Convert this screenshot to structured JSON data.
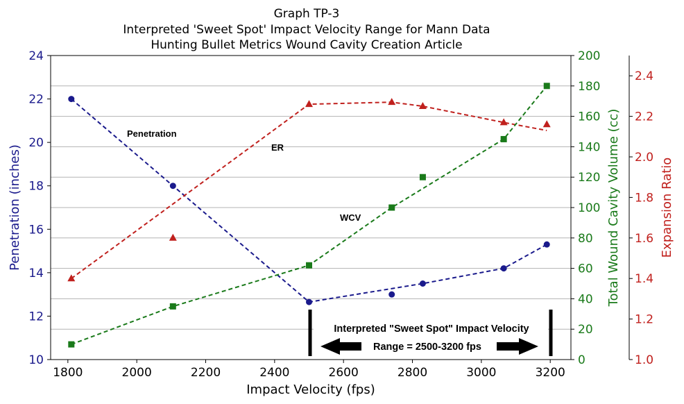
{
  "chart_data": {
    "type": "line",
    "title_lines": [
      "Graph TP-3",
      "Interpreted 'Sweet Spot' Impact Velocity Range for Mann Data",
      "Hunting Bullet Metrics Wound Cavity Creation Article"
    ],
    "xlabel": "Impact Velocity (fps)",
    "xlim": [
      1750,
      3260
    ],
    "xticks": [
      "1800",
      "2000",
      "2200",
      "2400",
      "2600",
      "2800",
      "3000",
      "3200"
    ],
    "axes": {
      "left": {
        "label": "Penetration (inches)",
        "ylim": [
          10,
          24
        ],
        "ticks": [
          "10",
          "12",
          "14",
          "16",
          "18",
          "20",
          "22",
          "24"
        ],
        "color": "#1a1a8c"
      },
      "right1": {
        "label": "Total Wound Cavity Volume (cc)",
        "ylim": [
          0,
          200
        ],
        "ticks": [
          "0",
          "20",
          "40",
          "60",
          "80",
          "100",
          "120",
          "140",
          "160",
          "180",
          "200"
        ],
        "color": "#1a7a1a"
      },
      "right2": {
        "label": "Expansion Ratio",
        "ylim": [
          1.0,
          2.5
        ],
        "ticks": [
          "1.0",
          "1.2",
          "1.4",
          "1.6",
          "1.8",
          "2.0",
          "2.2",
          "2.4"
        ],
        "color": "#c0201d"
      }
    },
    "series": [
      {
        "name": "Penetration",
        "axis": "left",
        "color": "#1a1a8c",
        "marker": "circle",
        "points": [
          [
            1810,
            22.0
          ],
          [
            2105,
            18.0
          ],
          [
            2500,
            12.65
          ],
          [
            2740,
            13.0
          ],
          [
            2830,
            13.5
          ],
          [
            3065,
            14.2
          ],
          [
            3190,
            15.3
          ]
        ],
        "fit": [
          [
            1810,
            22.0
          ],
          [
            2500,
            12.65
          ],
          [
            2830,
            13.5
          ],
          [
            3065,
            14.2
          ],
          [
            3190,
            15.3
          ]
        ]
      },
      {
        "name": "ER",
        "axis": "right2",
        "color": "#c0201d",
        "marker": "triangle",
        "points": [
          [
            1810,
            1.4
          ],
          [
            2105,
            1.6
          ],
          [
            2500,
            2.26
          ],
          [
            2740,
            2.27
          ],
          [
            2830,
            2.25
          ],
          [
            3065,
            2.17
          ],
          [
            3190,
            2.16
          ]
        ],
        "fit": [
          [
            1810,
            1.4
          ],
          [
            2500,
            2.26
          ],
          [
            2740,
            2.27
          ],
          [
            2830,
            2.25
          ],
          [
            3065,
            2.17
          ],
          [
            3190,
            2.13
          ]
        ]
      },
      {
        "name": "WCV",
        "axis": "right1",
        "color": "#1a7a1a",
        "marker": "square",
        "points": [
          [
            1810,
            10
          ],
          [
            2105,
            35
          ],
          [
            2500,
            62
          ],
          [
            2740,
            100
          ],
          [
            2830,
            120
          ],
          [
            3065,
            145
          ],
          [
            3190,
            180
          ]
        ],
        "fit": [
          [
            1810,
            10
          ],
          [
            2105,
            35
          ],
          [
            2500,
            62
          ],
          [
            2740,
            100
          ],
          [
            3065,
            145
          ],
          [
            3190,
            180
          ]
        ]
      }
    ],
    "annotations": [
      {
        "text": "Penetration"
      },
      {
        "text": "ER"
      },
      {
        "text": "WCV"
      }
    ],
    "sweet_spot": {
      "x_range": [
        2500,
        3200
      ],
      "line1": "Interpreted \"Sweet Spot\" Impact Velocity",
      "line2": "Range = 2500-3200 fps"
    }
  }
}
